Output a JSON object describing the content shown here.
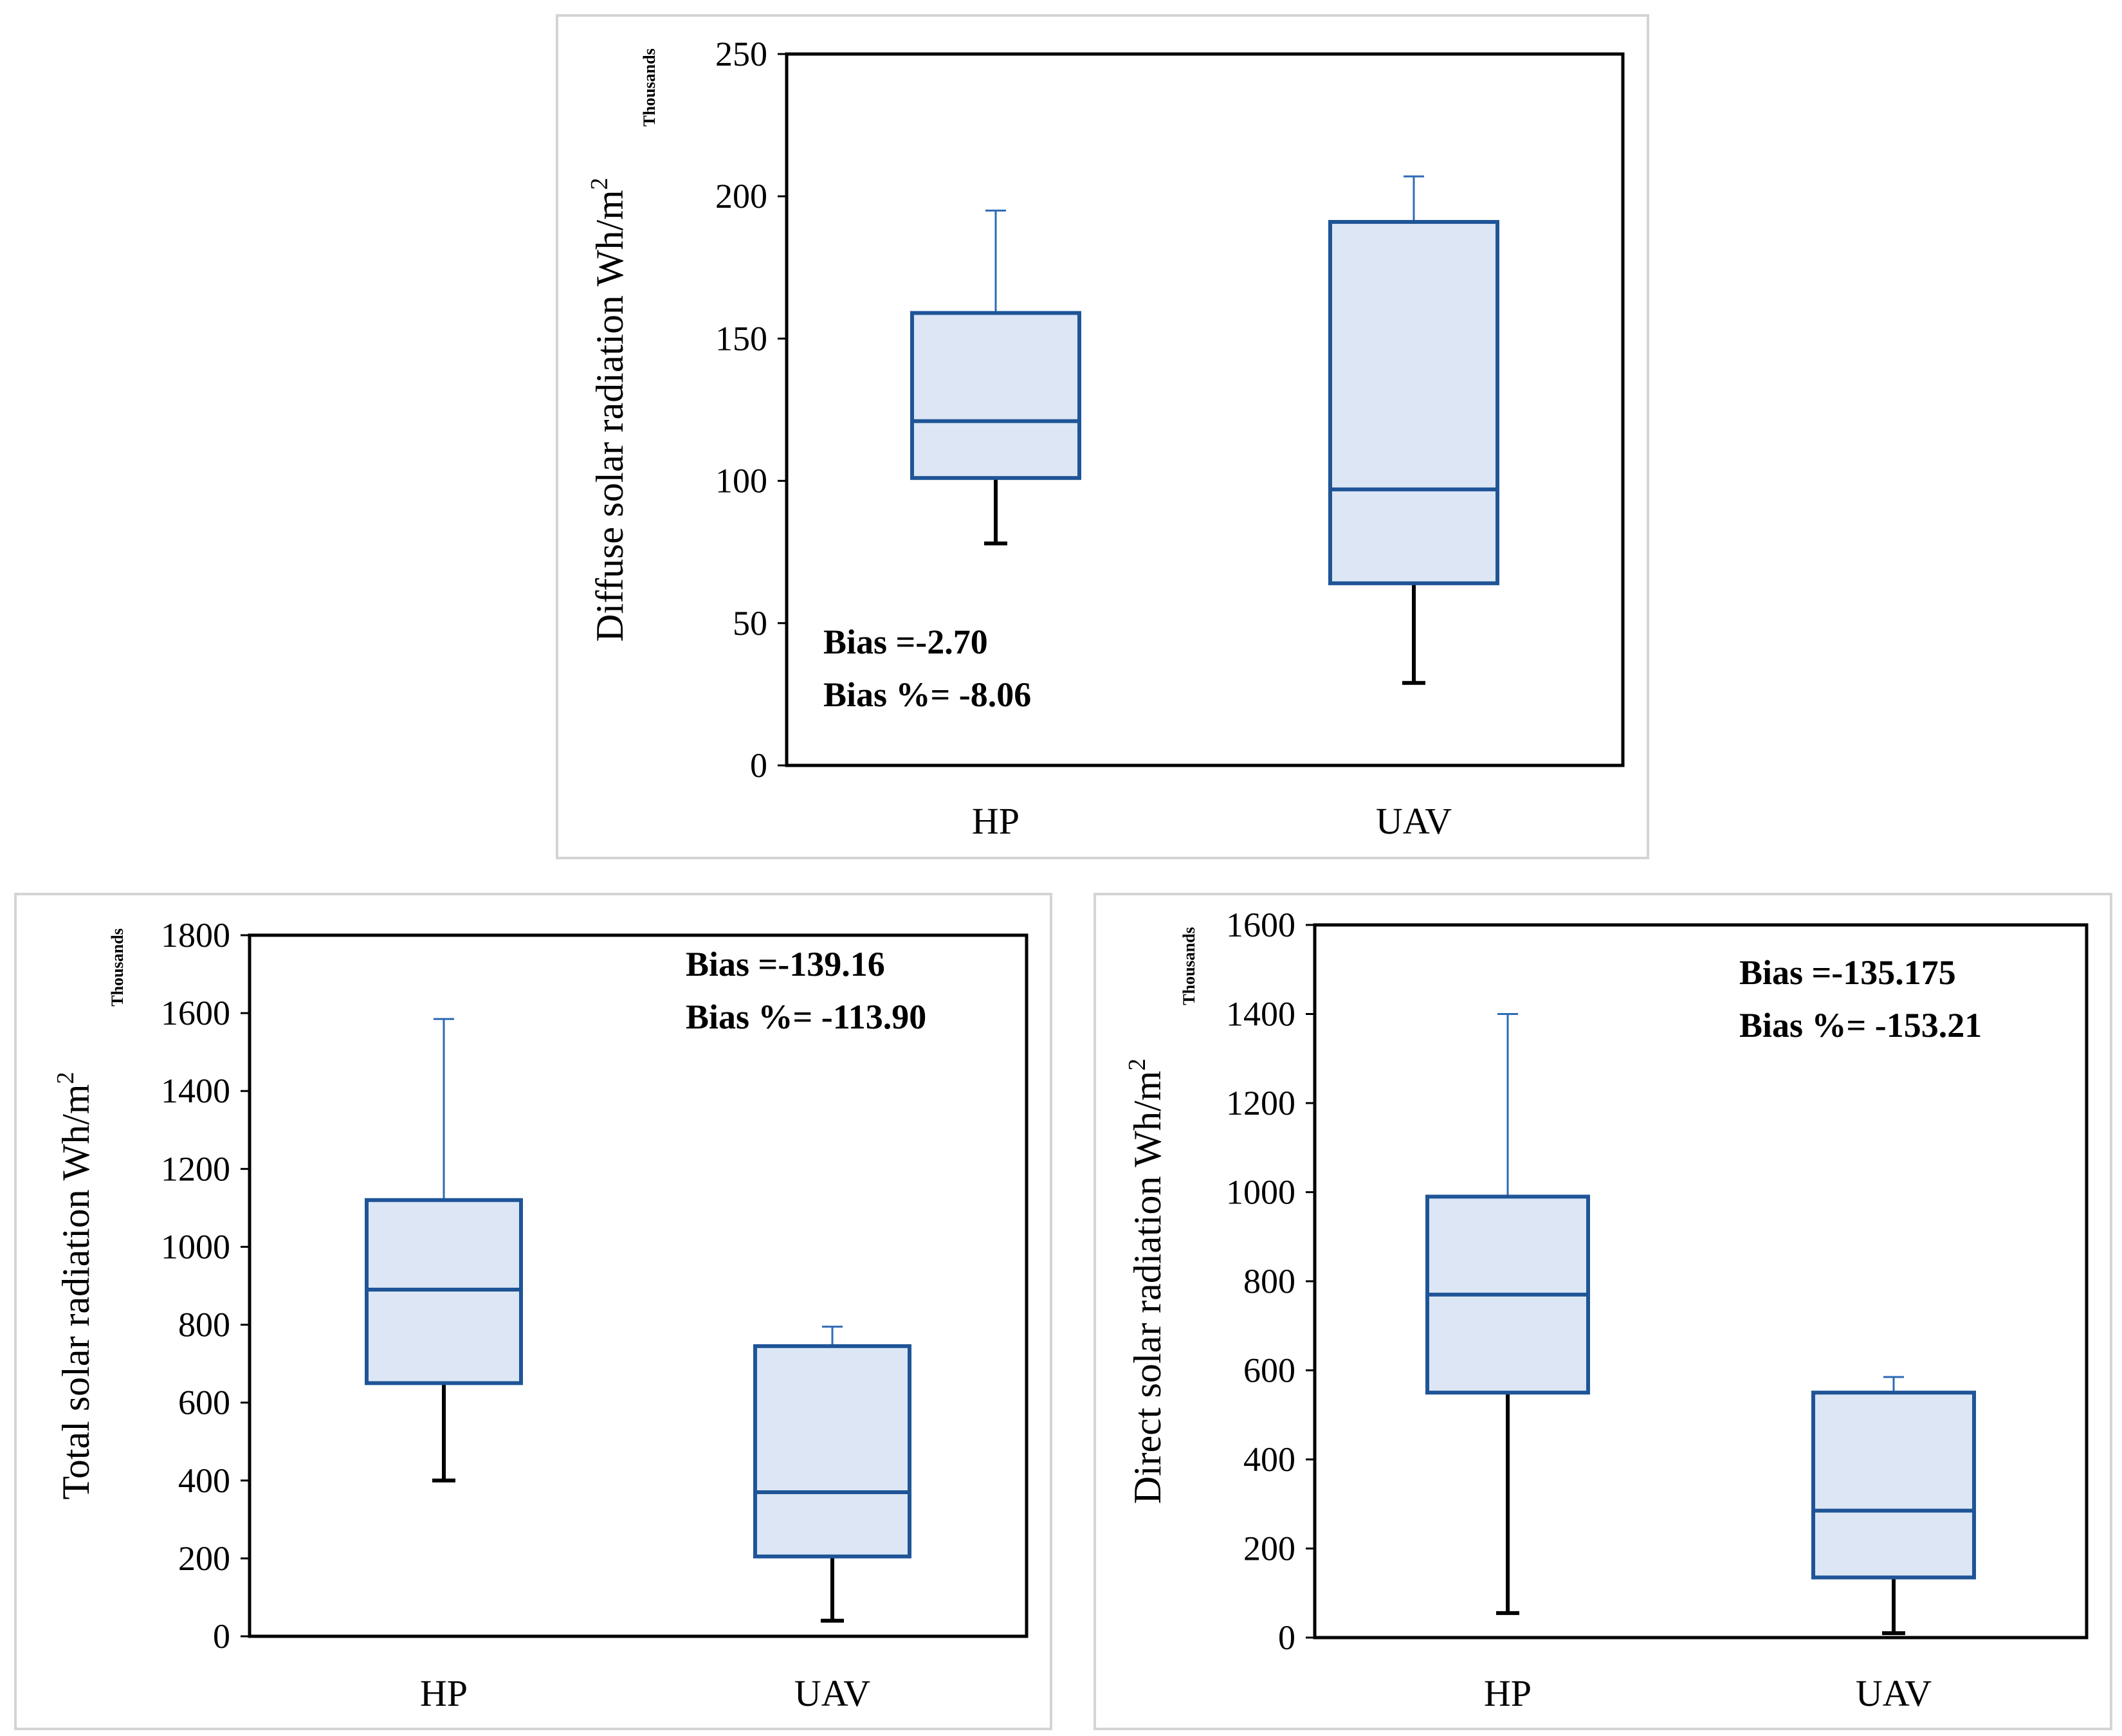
{
  "chart_data": [
    {
      "type": "box",
      "categories": [
        "HP",
        "UAV"
      ],
      "ylabel": "Diffuse solar radiation Wh/m",
      "ylabel_superscript": "2",
      "unit_label": "Thousands",
      "ylim": [
        0,
        250
      ],
      "yticks": [
        0,
        50,
        100,
        150,
        200,
        250
      ],
      "boxes": [
        {
          "category": "HP",
          "min": 78,
          "q1": 101,
          "median": 121,
          "q3": 159,
          "max": 195
        },
        {
          "category": "UAV",
          "min": 29,
          "q1": 64,
          "median": 97,
          "q3": 191,
          "max": 207
        }
      ],
      "annotations": [
        "Bias =-2.70",
        "Bias %= -8.06"
      ],
      "annotation_position": "bottom-left"
    },
    {
      "type": "box",
      "categories": [
        "HP",
        "UAV"
      ],
      "ylabel": "Total solar radiation Wh/m",
      "ylabel_superscript": "2",
      "unit_label": "Thousands",
      "ylim": [
        0,
        1800
      ],
      "yticks": [
        0,
        200,
        400,
        600,
        800,
        1000,
        1200,
        1400,
        1600,
        1800
      ],
      "boxes": [
        {
          "category": "HP",
          "min": 400,
          "q1": 650,
          "median": 890,
          "q3": 1120,
          "max": 1585
        },
        {
          "category": "UAV",
          "min": 40,
          "q1": 205,
          "median": 370,
          "q3": 745,
          "max": 795
        }
      ],
      "annotations": [
        "Bias =-139.16",
        "Bias %= -113.90"
      ],
      "annotation_position": "top-right"
    },
    {
      "type": "box",
      "categories": [
        "HP",
        "UAV"
      ],
      "ylabel": "Direct solar radiation Wh/m",
      "ylabel_superscript": "2",
      "unit_label": "Thousands",
      "ylim": [
        0,
        1600
      ],
      "yticks": [
        0,
        200,
        400,
        600,
        800,
        1000,
        1200,
        1400,
        1600
      ],
      "boxes": [
        {
          "category": "HP",
          "min": 55,
          "q1": 550,
          "median": 770,
          "q3": 990,
          "max": 1400
        },
        {
          "category": "UAV",
          "min": 10,
          "q1": 135,
          "median": 285,
          "q3": 550,
          "max": 585
        }
      ],
      "annotations": [
        "Bias =-135.175",
        "Bias %= -153.21"
      ],
      "annotation_position": "top-right"
    }
  ],
  "colors": {
    "box_fill": "#dce6f5",
    "box_stroke": "#1f5597",
    "upper_whisker": "#2e6bb5",
    "lower_whisker": "#000000",
    "panel_border": "#d4d4d4",
    "plot_border": "#000000"
  }
}
